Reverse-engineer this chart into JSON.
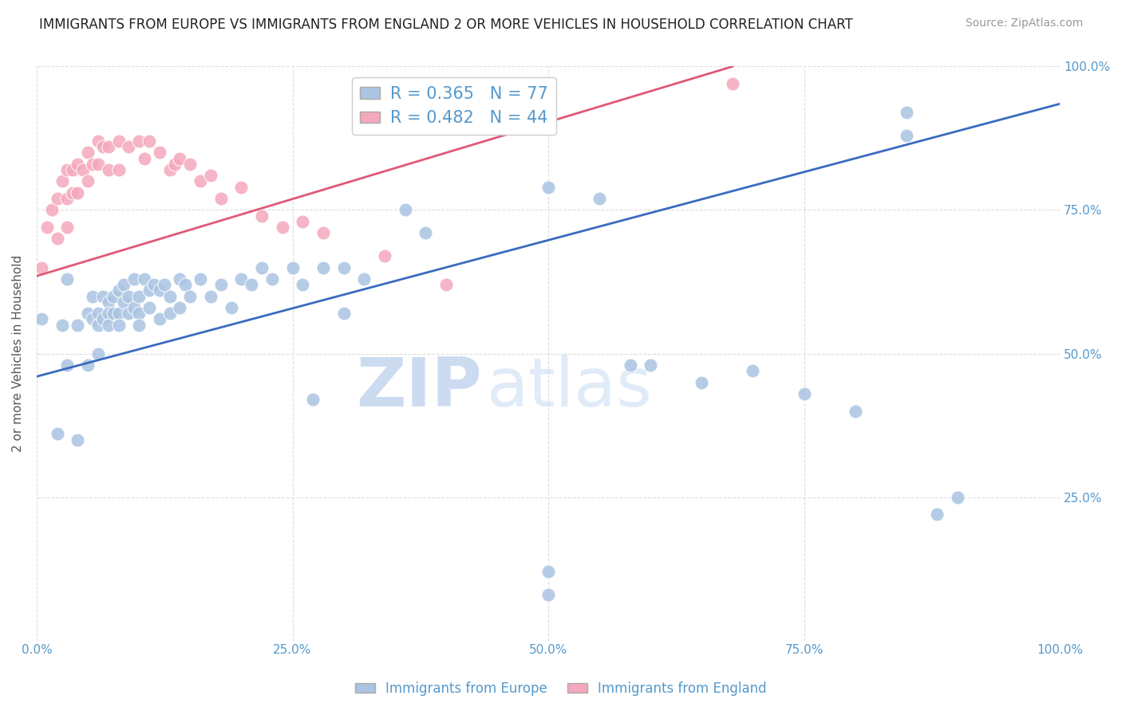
{
  "title": "IMMIGRANTS FROM EUROPE VS IMMIGRANTS FROM ENGLAND 2 OR MORE VEHICLES IN HOUSEHOLD CORRELATION CHART",
  "source": "Source: ZipAtlas.com",
  "ylabel": "2 or more Vehicles in Household",
  "xlim": [
    0,
    1.0
  ],
  "ylim": [
    0,
    1.0
  ],
  "xtick_labels": [
    "0.0%",
    "25.0%",
    "50.0%",
    "75.0%",
    "100.0%"
  ],
  "xtick_vals": [
    0.0,
    0.25,
    0.5,
    0.75,
    1.0
  ],
  "ytick_labels": [
    "",
    "25.0%",
    "50.0%",
    "75.0%",
    "100.0%"
  ],
  "ytick_vals": [
    0.0,
    0.25,
    0.5,
    0.75,
    1.0
  ],
  "blue_R": 0.365,
  "blue_N": 77,
  "pink_R": 0.482,
  "pink_N": 44,
  "blue_color": "#aac4e2",
  "pink_color": "#f4a8bc",
  "blue_line_color": "#3a6bbf",
  "pink_line_color": "#e05878",
  "legend_blue_label": "Immigrants from Europe",
  "legend_pink_label": "Immigrants from England",
  "watermark_zip": "ZIP",
  "watermark_atlas": "atlas",
  "watermark_color": "#c5d8f0",
  "title_color": "#222222",
  "axis_color": "#5599cc",
  "blue_line_x0": 0.0,
  "blue_line_x1": 1.0,
  "blue_line_y0": 0.46,
  "blue_line_y1": 0.935,
  "pink_line_x0": 0.0,
  "pink_line_x1": 0.68,
  "pink_line_y0": 0.635,
  "pink_line_y1": 1.0,
  "blue_scatter_x": [
    0.005,
    0.02,
    0.025,
    0.03,
    0.03,
    0.04,
    0.04,
    0.05,
    0.05,
    0.055,
    0.055,
    0.06,
    0.06,
    0.06,
    0.065,
    0.065,
    0.07,
    0.07,
    0.07,
    0.075,
    0.075,
    0.08,
    0.08,
    0.08,
    0.085,
    0.085,
    0.09,
    0.09,
    0.095,
    0.095,
    0.1,
    0.1,
    0.1,
    0.105,
    0.11,
    0.11,
    0.115,
    0.12,
    0.12,
    0.125,
    0.13,
    0.13,
    0.14,
    0.14,
    0.145,
    0.15,
    0.16,
    0.17,
    0.18,
    0.19,
    0.2,
    0.21,
    0.22,
    0.23,
    0.25,
    0.26,
    0.28,
    0.3,
    0.3,
    0.32,
    0.36,
    0.38,
    0.5,
    0.55,
    0.58,
    0.6,
    0.65,
    0.7,
    0.75,
    0.8,
    0.85,
    0.85,
    0.88,
    0.9,
    0.5,
    0.5,
    0.27
  ],
  "blue_scatter_y": [
    0.56,
    0.36,
    0.55,
    0.63,
    0.48,
    0.35,
    0.55,
    0.57,
    0.48,
    0.6,
    0.56,
    0.57,
    0.55,
    0.5,
    0.6,
    0.56,
    0.59,
    0.57,
    0.55,
    0.6,
    0.57,
    0.61,
    0.57,
    0.55,
    0.62,
    0.59,
    0.6,
    0.57,
    0.63,
    0.58,
    0.6,
    0.57,
    0.55,
    0.63,
    0.61,
    0.58,
    0.62,
    0.61,
    0.56,
    0.62,
    0.6,
    0.57,
    0.63,
    0.58,
    0.62,
    0.6,
    0.63,
    0.6,
    0.62,
    0.58,
    0.63,
    0.62,
    0.65,
    0.63,
    0.65,
    0.62,
    0.65,
    0.65,
    0.57,
    0.63,
    0.75,
    0.71,
    0.79,
    0.77,
    0.48,
    0.48,
    0.45,
    0.47,
    0.43,
    0.4,
    0.92,
    0.88,
    0.22,
    0.25,
    0.12,
    0.08,
    0.42
  ],
  "pink_scatter_x": [
    0.005,
    0.01,
    0.015,
    0.02,
    0.02,
    0.025,
    0.03,
    0.03,
    0.03,
    0.035,
    0.035,
    0.04,
    0.04,
    0.045,
    0.05,
    0.05,
    0.055,
    0.06,
    0.06,
    0.065,
    0.07,
    0.07,
    0.08,
    0.08,
    0.09,
    0.1,
    0.105,
    0.11,
    0.12,
    0.13,
    0.135,
    0.14,
    0.15,
    0.16,
    0.17,
    0.18,
    0.2,
    0.22,
    0.24,
    0.26,
    0.28,
    0.34,
    0.4,
    0.68
  ],
  "pink_scatter_y": [
    0.65,
    0.72,
    0.75,
    0.77,
    0.7,
    0.8,
    0.82,
    0.77,
    0.72,
    0.82,
    0.78,
    0.83,
    0.78,
    0.82,
    0.85,
    0.8,
    0.83,
    0.87,
    0.83,
    0.86,
    0.86,
    0.82,
    0.87,
    0.82,
    0.86,
    0.87,
    0.84,
    0.87,
    0.85,
    0.82,
    0.83,
    0.84,
    0.83,
    0.8,
    0.81,
    0.77,
    0.79,
    0.74,
    0.72,
    0.73,
    0.71,
    0.67,
    0.62,
    0.97
  ]
}
